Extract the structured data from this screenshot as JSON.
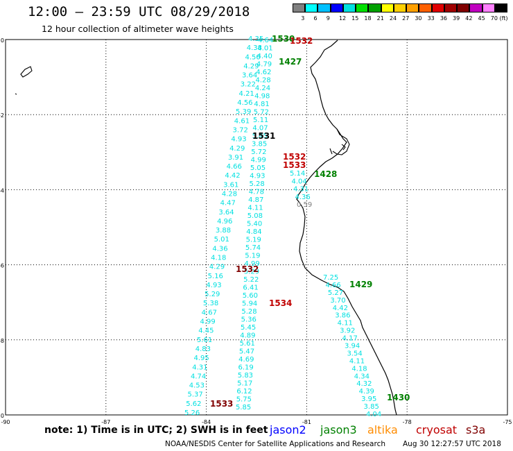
{
  "header": {
    "title": "12:00 – 23:59 UTC 08/29/2018",
    "subtitle": "12 hour collection of altimeter wave heights"
  },
  "color_scale": {
    "colors": [
      "#808080",
      "#00ffff",
      "#00c0ff",
      "#0000ff",
      "#00e0e0",
      "#00e000",
      "#00a000",
      "#ffff00",
      "#ffd000",
      "#ffa000",
      "#ff6000",
      "#e00000",
      "#a00000",
      "#800000",
      "#c000c0",
      "#ff80ff",
      "#000000"
    ],
    "labels": [
      "3",
      "6",
      "9",
      "12",
      "15",
      "18",
      "21",
      "24",
      "27",
      "30",
      "33",
      "36",
      "39",
      "42",
      "45",
      "70 (ft)"
    ]
  },
  "map": {
    "x_ticks": [
      "-90",
      "-87",
      "-84",
      "-81",
      "-78",
      "-75"
    ],
    "y_ticks": [
      "0",
      "-2",
      "-4",
      "-6",
      "-8",
      "-10"
    ],
    "wave_height_color": "#00e0e0",
    "track_a": [
      "4.35",
      "4.38",
      "4.50",
      "4.29",
      "3.64",
      "3.22",
      "4.21",
      "4.56",
      "5.39",
      "4.61",
      "3.72",
      "4.93",
      "4.29",
      "3.91",
      "4.66",
      "4.42",
      "3.61",
      "4.28",
      "4.47",
      "3.64",
      "4.96",
      "3.88",
      "5.01",
      "4.36",
      "4.18",
      "4.29",
      "5.16",
      "4.93",
      "5.29",
      "5.38",
      "4.67",
      "4.99",
      "4.45",
      "5.61",
      "4.83",
      "4.95",
      "4.31",
      "4.74",
      "4.53",
      "5.37",
      "5.62",
      "5.26"
    ],
    "track_b": [
      "4.64",
      "4.01",
      "4.40",
      "4.79",
      "4.62",
      "4.28",
      "4.24",
      "4.98",
      "4.81",
      "5.72",
      "5.11",
      "4.07",
      "5.45",
      "3.85",
      "5.72",
      "4.99",
      "5.05",
      "4.93",
      "5.28",
      "4.78",
      "4.87",
      "4.11",
      "5.08",
      "5.40",
      "4.84",
      "5.19",
      "5.74",
      "5.19",
      "4.99",
      "5.29",
      "5.22",
      "6.41",
      "5.60",
      "5.94",
      "5.28",
      "5.36",
      "5.45",
      "4.89",
      "5.61",
      "5.47",
      "4.69",
      "6.19",
      "5.83",
      "5.17",
      "6.12",
      "5.75",
      "5.85"
    ],
    "track_c": [
      "5.14",
      "4.04",
      "4.31",
      "4.36",
      "0.59"
    ],
    "track_d": [
      "7.25",
      "4.66",
      "5.27",
      "3.70",
      "4.42",
      "3.86",
      "4.11",
      "3.92",
      "4.17",
      "3.94",
      "3.54",
      "4.11",
      "4.18",
      "4.34",
      "4.32",
      "4.39",
      "3.95",
      "3.85",
      "4.04"
    ],
    "time_labels": [
      {
        "t": "1530",
        "c": "#008000"
      },
      {
        "t": "1532",
        "c": "#c00000"
      },
      {
        "t": "1427",
        "c": "#008000"
      },
      {
        "t": "1531",
        "c": "#000000"
      },
      {
        "t": "1532",
        "c": "#c00000"
      },
      {
        "t": "1533",
        "c": "#c00000"
      },
      {
        "t": "1428",
        "c": "#008000"
      },
      {
        "t": "1532",
        "c": "#800000"
      },
      {
        "t": "1429",
        "c": "#008000"
      },
      {
        "t": "1534",
        "c": "#c00000"
      },
      {
        "t": "1533",
        "c": "#800000"
      },
      {
        "t": "1430",
        "c": "#008000"
      }
    ]
  },
  "note": "note: 1) Time is in UTC; 2) SWH is in feet",
  "legend": [
    {
      "name": "jason2",
      "color": "#0000ff"
    },
    {
      "name": "jason3",
      "color": "#008000"
    },
    {
      "name": "altika",
      "color": "#ff8c00"
    },
    {
      "name": "cryosat",
      "color": "#c00000"
    },
    {
      "name": "s3a",
      "color": "#800000"
    }
  ],
  "footer": {
    "credit": "NOAA/NESDIS Center for Satellite Applications and Research",
    "timestamp": "Aug 30 12:27:57 UTC 2018"
  }
}
